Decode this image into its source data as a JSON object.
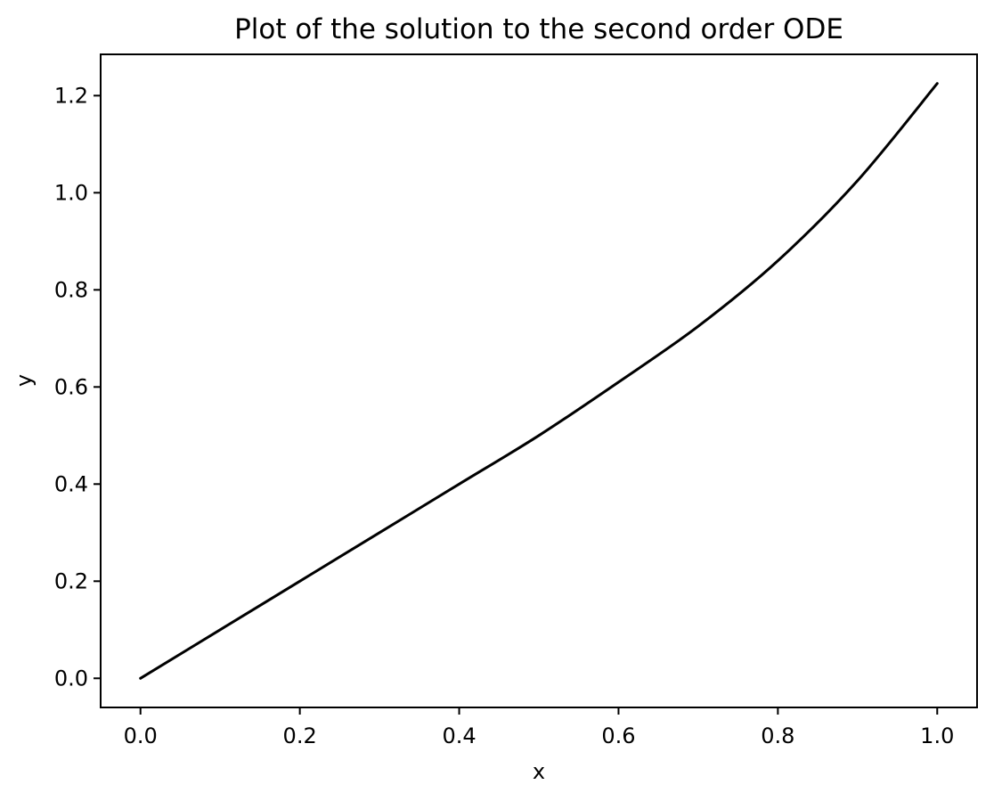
{
  "chart_data": {
    "type": "line",
    "title": "Plot of the solution to the second order ODE",
    "xlabel": "x",
    "ylabel": "y",
    "xlim": [
      -0.05,
      1.05
    ],
    "ylim": [
      -0.06,
      1.285
    ],
    "grid": false,
    "x_ticks": [
      0.0,
      0.2,
      0.4,
      0.6,
      0.8,
      1.0
    ],
    "x_tick_labels": [
      "0.0",
      "0.2",
      "0.4",
      "0.6",
      "0.8",
      "1.0"
    ],
    "y_ticks": [
      0.0,
      0.2,
      0.4,
      0.6,
      0.8,
      1.0,
      1.2
    ],
    "y_tick_labels": [
      "0.0",
      "0.2",
      "0.4",
      "0.6",
      "0.8",
      "1.0",
      "1.2"
    ],
    "series": [
      {
        "color": "#000000",
        "x": [
          0.0,
          0.1,
          0.2,
          0.3,
          0.4,
          0.5,
          0.6,
          0.7,
          0.8,
          0.9,
          1.0
        ],
        "y": [
          0.0,
          0.1,
          0.2,
          0.3,
          0.4,
          0.5,
          0.61,
          0.725,
          0.86,
          1.025,
          1.225
        ]
      }
    ]
  }
}
